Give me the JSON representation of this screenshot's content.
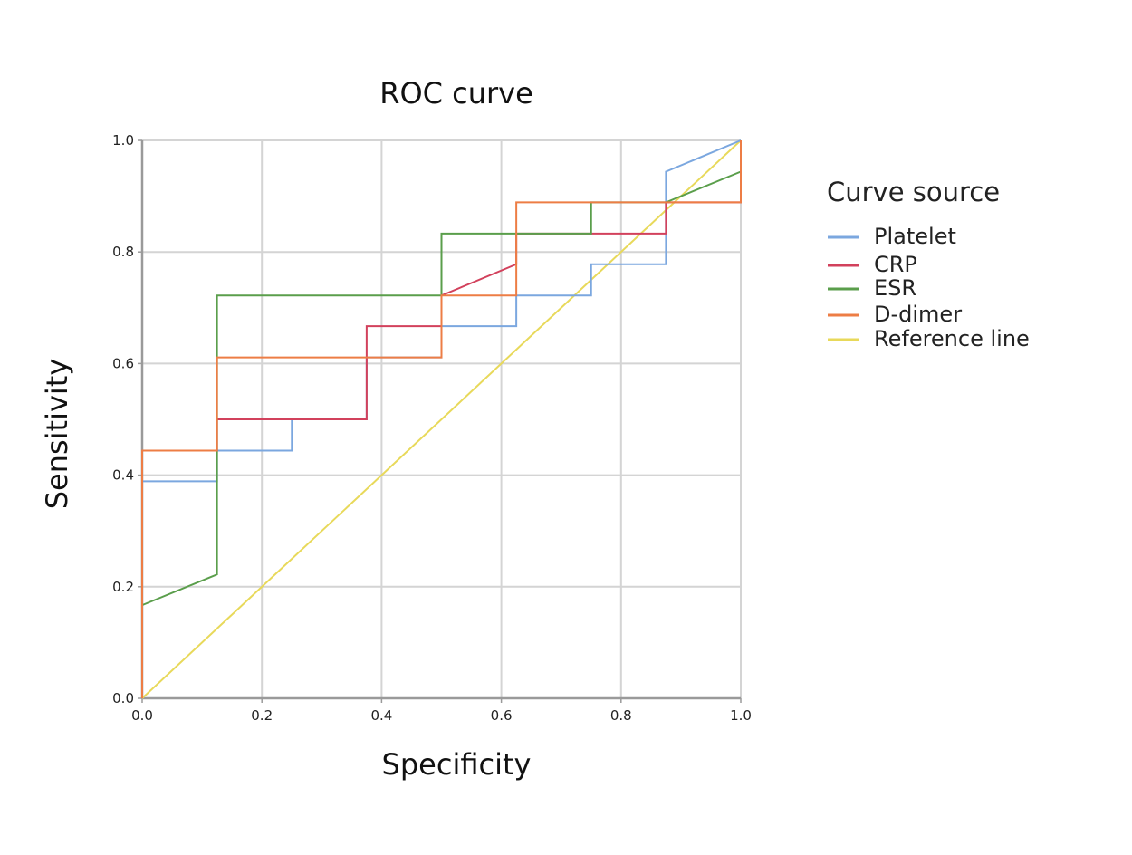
{
  "chart_data": {
    "type": "line",
    "title": "ROC curve",
    "xlabel": "Specificity",
    "ylabel": "Sensitivity",
    "xlim": [
      0,
      1
    ],
    "ylim": [
      0,
      1
    ],
    "grid": true,
    "x_ticks": [
      0.0,
      0.2,
      0.4,
      0.6,
      0.8,
      1.0
    ],
    "y_ticks": [
      0.0,
      0.2,
      0.4,
      0.6,
      0.8,
      1.0
    ],
    "x_tick_labels": [
      "0.0",
      "0.2",
      "0.4",
      "0.6",
      "0.8",
      "1.0"
    ],
    "y_tick_labels": [
      "0.0",
      "0.2",
      "0.4",
      "0.6",
      "0.8",
      "1.0"
    ],
    "legend": {
      "title": "Curve source",
      "position": "right"
    },
    "series": [
      {
        "name": "Platelet",
        "color": "#7ba7df",
        "points": [
          [
            0,
            0
          ],
          [
            0,
            0.389
          ],
          [
            0.125,
            0.389
          ],
          [
            0.125,
            0.444
          ],
          [
            0.25,
            0.444
          ],
          [
            0.25,
            0.5
          ],
          [
            0.375,
            0.5
          ],
          [
            0.375,
            0.611
          ],
          [
            0.5,
            0.611
          ],
          [
            0.5,
            0.667
          ],
          [
            0.625,
            0.667
          ],
          [
            0.625,
            0.722
          ],
          [
            0.75,
            0.722
          ],
          [
            0.75,
            0.778
          ],
          [
            0.875,
            0.778
          ],
          [
            0.875,
            0.944
          ],
          [
            1,
            1
          ]
        ]
      },
      {
        "name": "CRP",
        "color": "#d2415c",
        "points": [
          [
            0,
            0
          ],
          [
            0,
            0.444
          ],
          [
            0.125,
            0.444
          ],
          [
            0.125,
            0.5
          ],
          [
            0.375,
            0.5
          ],
          [
            0.375,
            0.667
          ],
          [
            0.5,
            0.667
          ],
          [
            0.5,
            0.722
          ],
          [
            0.625,
            0.778
          ],
          [
            0.625,
            0.833
          ],
          [
            0.875,
            0.833
          ],
          [
            0.875,
            0.889
          ],
          [
            1,
            0.889
          ],
          [
            1,
            1
          ]
        ]
      },
      {
        "name": "ESR",
        "color": "#5a9e4b",
        "points": [
          [
            0,
            0
          ],
          [
            0,
            0.167
          ],
          [
            0.125,
            0.222
          ],
          [
            0.125,
            0.722
          ],
          [
            0.5,
            0.722
          ],
          [
            0.5,
            0.833
          ],
          [
            0.75,
            0.833
          ],
          [
            0.75,
            0.889
          ],
          [
            0.875,
            0.889
          ],
          [
            1,
            0.944
          ],
          [
            1,
            1
          ]
        ]
      },
      {
        "name": "D-dimer",
        "color": "#ed7d45",
        "points": [
          [
            0,
            0
          ],
          [
            0,
            0.444
          ],
          [
            0.125,
            0.444
          ],
          [
            0.125,
            0.611
          ],
          [
            0.5,
            0.611
          ],
          [
            0.5,
            0.722
          ],
          [
            0.625,
            0.722
          ],
          [
            0.625,
            0.889
          ],
          [
            1,
            0.889
          ],
          [
            1,
            1
          ]
        ]
      },
      {
        "name": "Reference line",
        "color": "#e8d95a",
        "points": [
          [
            0,
            0
          ],
          [
            1,
            1
          ]
        ]
      }
    ]
  }
}
